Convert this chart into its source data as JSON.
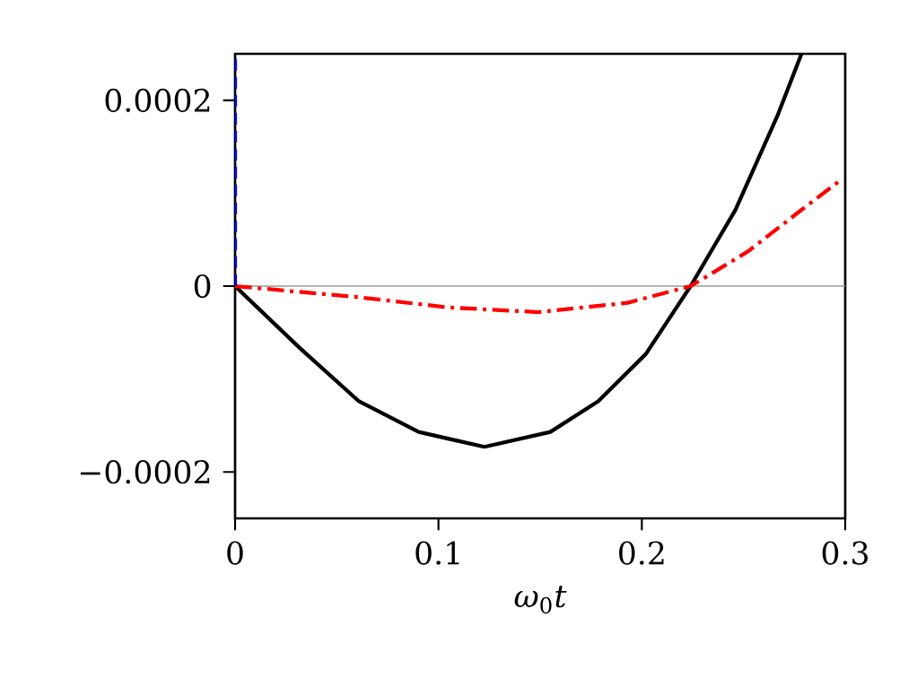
{
  "chart_data": {
    "type": "line",
    "xlabel": "*ω*$_{0}$*t*",
    "xlim": [
      0,
      0.3
    ],
    "ylim": [
      -0.00025,
      0.00025
    ],
    "xticks": [
      0,
      0.1,
      0.2,
      0.3
    ],
    "yticks": [
      {
        "value": -0.0002,
        "label": "−0.0002"
      },
      0,
      0.0002
    ],
    "ref_lines": [
      {
        "axis": "y",
        "value": 0,
        "color": "#999999"
      }
    ],
    "series": [
      {
        "color": "#000000",
        "line_style": "solid",
        "x": [
          0,
          0.0315,
          0.0609,
          0.0903,
          0.1226,
          0.155,
          0.1785,
          0.202,
          0.224,
          0.246,
          0.267,
          0.2785
        ],
        "values": [
          0,
          -6.6e-05,
          -0.000124,
          -0.000157,
          -0.000173,
          -0.000157,
          -0.000124,
          -7.3e-05,
          0,
          8.2e-05,
          0.000185,
          0.00025
        ]
      },
      {
        "color": "#ff0000",
        "line_style": "dashdot",
        "x": [
          0,
          0.0609,
          0.105,
          0.149,
          0.193,
          0.224,
          0.252,
          0.2785,
          0.2977
        ],
        "values": [
          0,
          -1.2e-05,
          -2.3e-05,
          -2.8e-05,
          -1.8e-05,
          0,
          3.7e-05,
          8.2e-05,
          0.000114
        ]
      },
      {
        "color": "#0000ff",
        "line_style": "dashed",
        "x": [
          0,
          0
        ],
        "values": [
          0,
          0.00025
        ]
      }
    ]
  }
}
